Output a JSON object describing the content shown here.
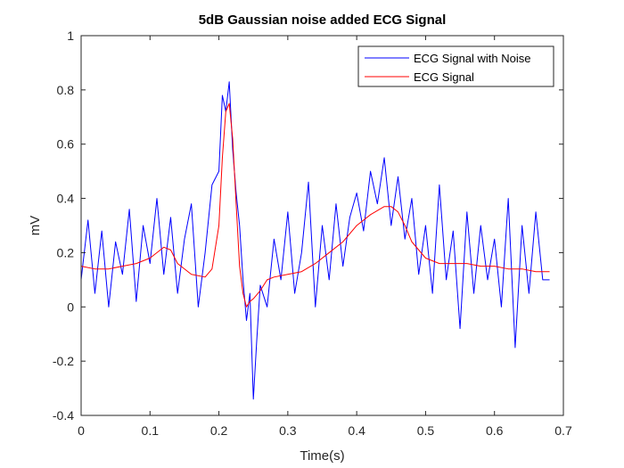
{
  "chart_data": {
    "type": "line",
    "title": "5dB Gaussian noise added ECG Signal",
    "xlabel": "Time(s)",
    "ylabel": "mV",
    "xlim": [
      0,
      0.7
    ],
    "ylim": [
      -0.4,
      1
    ],
    "xticks": [
      0,
      0.1,
      0.2,
      0.3,
      0.4,
      0.5,
      0.6,
      0.7
    ],
    "xtick_labels": [
      "0",
      "0.1",
      "0.2",
      "0.3",
      "0.4",
      "0.5",
      "0.6",
      "0.7"
    ],
    "yticks": [
      -0.4,
      -0.2,
      0,
      0.2,
      0.4,
      0.6,
      0.8,
      1
    ],
    "ytick_labels": [
      "-0.4",
      "-0.2",
      "0",
      "0.2",
      "0.4",
      "0.6",
      "0.8",
      "1"
    ],
    "grid": false,
    "legend_position": "top-right",
    "series": [
      {
        "name": "ECG Signal with Noise",
        "color": "#0000ff",
        "x": [
          0,
          0.01,
          0.02,
          0.03,
          0.04,
          0.05,
          0.06,
          0.07,
          0.08,
          0.09,
          0.1,
          0.11,
          0.12,
          0.13,
          0.14,
          0.15,
          0.16,
          0.17,
          0.18,
          0.19,
          0.2,
          0.205,
          0.21,
          0.215,
          0.22,
          0.225,
          0.23,
          0.235,
          0.24,
          0.245,
          0.25,
          0.255,
          0.26,
          0.27,
          0.28,
          0.29,
          0.3,
          0.31,
          0.32,
          0.33,
          0.34,
          0.35,
          0.36,
          0.37,
          0.38,
          0.39,
          0.4,
          0.41,
          0.42,
          0.43,
          0.44,
          0.45,
          0.46,
          0.47,
          0.48,
          0.49,
          0.5,
          0.51,
          0.52,
          0.53,
          0.54,
          0.55,
          0.56,
          0.57,
          0.58,
          0.59,
          0.6,
          0.61,
          0.62,
          0.63,
          0.64,
          0.65,
          0.66,
          0.67,
          0.68
        ],
        "y": [
          0.1,
          0.32,
          0.05,
          0.28,
          0.0,
          0.24,
          0.12,
          0.36,
          0.02,
          0.3,
          0.16,
          0.4,
          0.12,
          0.33,
          0.05,
          0.25,
          0.38,
          0.0,
          0.2,
          0.45,
          0.5,
          0.78,
          0.72,
          0.83,
          0.58,
          0.42,
          0.3,
          0.1,
          -0.05,
          0.05,
          -0.34,
          -0.12,
          0.08,
          0.0,
          0.25,
          0.1,
          0.35,
          0.05,
          0.2,
          0.46,
          0.0,
          0.3,
          0.1,
          0.38,
          0.15,
          0.33,
          0.42,
          0.28,
          0.5,
          0.38,
          0.55,
          0.3,
          0.48,
          0.25,
          0.4,
          0.12,
          0.3,
          0.05,
          0.45,
          0.1,
          0.28,
          -0.08,
          0.35,
          0.05,
          0.3,
          0.1,
          0.25,
          0.0,
          0.4,
          -0.15,
          0.3,
          0.05,
          0.35,
          0.1,
          0.1
        ]
      },
      {
        "name": "ECG Signal",
        "color": "#ff0000",
        "x": [
          0,
          0.02,
          0.04,
          0.06,
          0.08,
          0.1,
          0.12,
          0.13,
          0.14,
          0.16,
          0.18,
          0.19,
          0.2,
          0.205,
          0.21,
          0.215,
          0.22,
          0.225,
          0.23,
          0.235,
          0.24,
          0.245,
          0.25,
          0.26,
          0.27,
          0.28,
          0.3,
          0.32,
          0.34,
          0.36,
          0.38,
          0.4,
          0.42,
          0.44,
          0.45,
          0.46,
          0.47,
          0.48,
          0.5,
          0.52,
          0.54,
          0.56,
          0.58,
          0.6,
          0.62,
          0.64,
          0.66,
          0.68
        ],
        "y": [
          0.15,
          0.14,
          0.14,
          0.15,
          0.16,
          0.18,
          0.22,
          0.21,
          0.16,
          0.12,
          0.11,
          0.14,
          0.3,
          0.55,
          0.72,
          0.75,
          0.62,
          0.38,
          0.15,
          0.05,
          0.0,
          0.02,
          0.03,
          0.06,
          0.1,
          0.11,
          0.12,
          0.13,
          0.16,
          0.2,
          0.24,
          0.3,
          0.34,
          0.37,
          0.37,
          0.35,
          0.3,
          0.24,
          0.18,
          0.16,
          0.16,
          0.16,
          0.15,
          0.15,
          0.14,
          0.14,
          0.13,
          0.13
        ]
      }
    ]
  }
}
